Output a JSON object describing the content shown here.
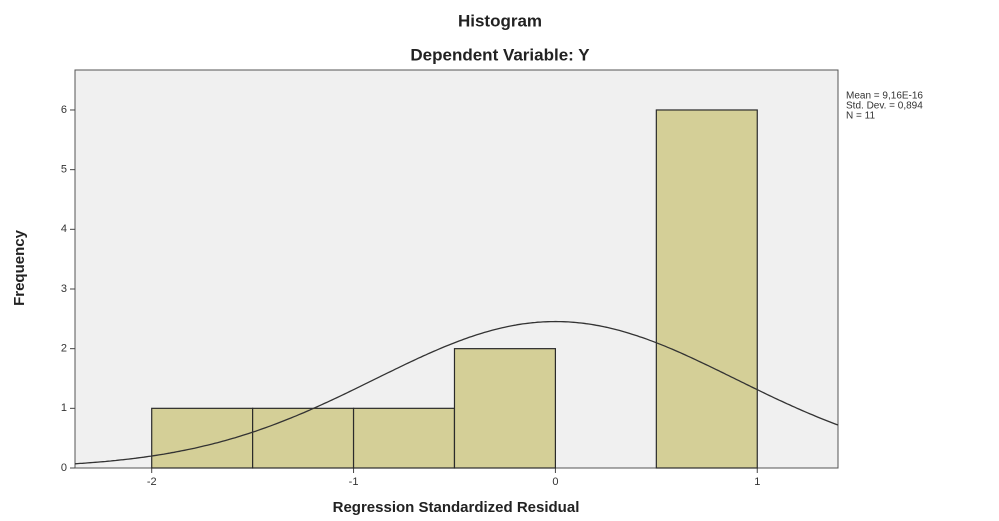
{
  "chart_data": {
    "type": "histogram",
    "title": "Histogram",
    "subtitle": "Dependent Variable: Y",
    "xlabel": "Regression Standardized Residual",
    "ylabel": "Frequency",
    "bins": [
      -2,
      -1.5,
      -1,
      -0.5,
      0,
      0.5,
      1
    ],
    "values": [
      1,
      1,
      1,
      2,
      0,
      6
    ],
    "color": "#d4cf97",
    "edge_color": "#2b2b2b",
    "background": "#f0f0f0",
    "xlim": [
      -2.38,
      1.4
    ],
    "xticks": [
      -2,
      -1,
      0,
      1
    ],
    "ylim": [
      0,
      6.67
    ],
    "yticks": [
      0,
      1,
      2,
      3,
      4,
      5,
      6
    ],
    "normal_curve": {
      "mean": 9.16e-16,
      "std": 0.894,
      "n": 11
    },
    "stats": [
      "Mean = 9,16E-16",
      "Std. Dev. = 0,894",
      "N = 11"
    ]
  }
}
